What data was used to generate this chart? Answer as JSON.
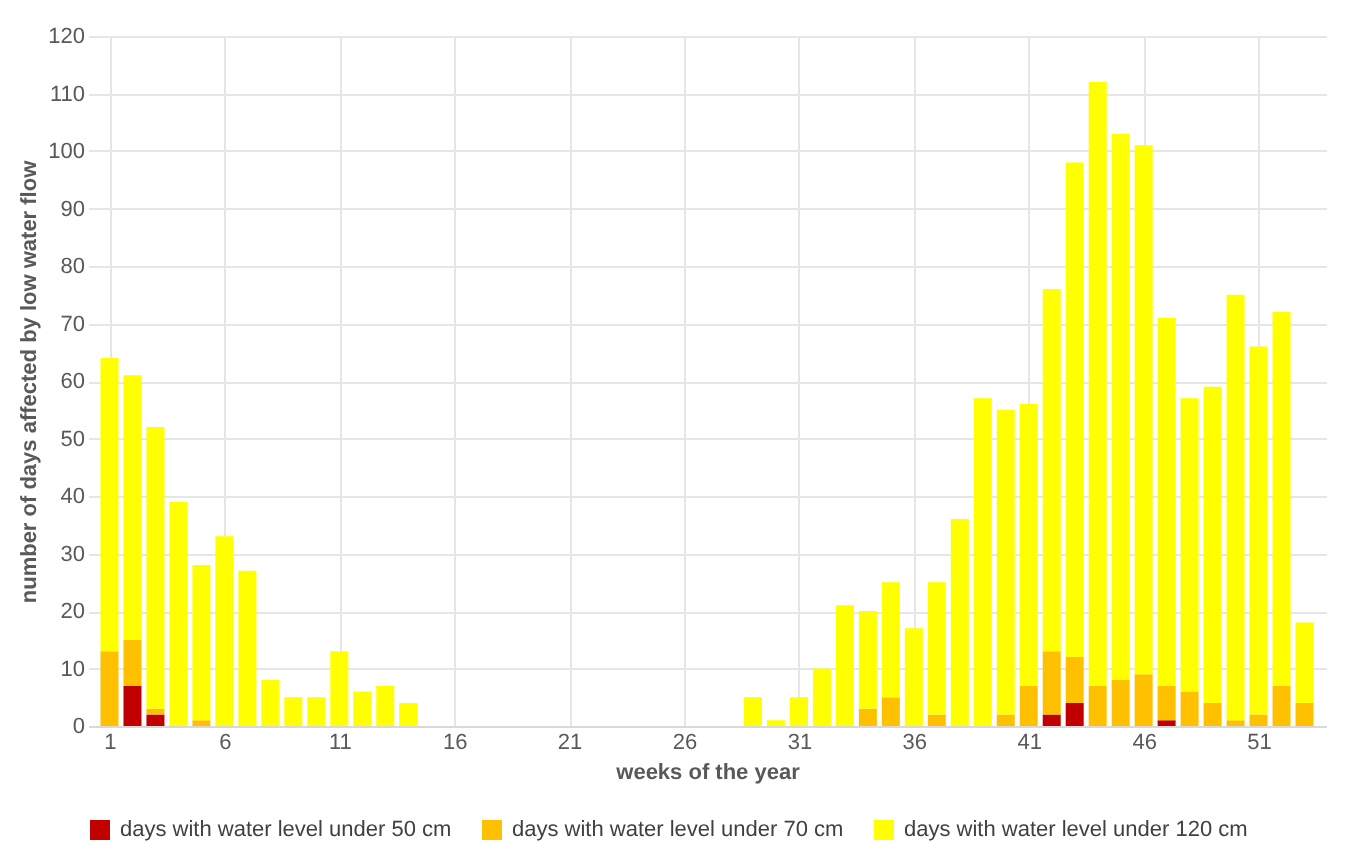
{
  "chart_data": {
    "type": "bar",
    "stacked": true,
    "xlabel": "weeks of the year",
    "ylabel": "number of days affected by low water flow",
    "x": [
      1,
      2,
      3,
      4,
      5,
      6,
      7,
      8,
      9,
      10,
      11,
      12,
      13,
      14,
      15,
      16,
      17,
      18,
      19,
      20,
      21,
      22,
      23,
      24,
      25,
      26,
      27,
      28,
      29,
      30,
      31,
      32,
      33,
      34,
      35,
      36,
      37,
      38,
      39,
      40,
      41,
      42,
      43,
      44,
      45,
      46,
      47,
      48,
      49,
      50,
      51,
      52,
      53
    ],
    "xlim": [
      0.5,
      53.5
    ],
    "xticks": [
      1,
      6,
      11,
      16,
      21,
      26,
      31,
      36,
      41,
      46,
      51
    ],
    "series": [
      {
        "name": "days with water level under 50 cm",
        "color": "#c00000",
        "values": [
          0,
          7,
          2,
          0,
          0,
          0,
          0,
          0,
          0,
          0,
          0,
          0,
          0,
          0,
          0,
          0,
          0,
          0,
          0,
          0,
          0,
          0,
          0,
          0,
          0,
          0,
          0,
          0,
          0,
          0,
          0,
          0,
          0,
          0,
          0,
          0,
          0,
          0,
          0,
          0,
          0,
          2,
          4,
          0,
          0,
          0,
          1,
          0,
          0,
          0,
          0,
          0,
          0
        ]
      },
      {
        "name": "days with water level under 70 cm",
        "color": "#ffc000",
        "values": [
          13,
          8,
          1,
          0,
          1,
          0,
          0,
          0,
          0,
          0,
          0,
          0,
          0,
          0,
          0,
          0,
          0,
          0,
          0,
          0,
          0,
          0,
          0,
          0,
          0,
          0,
          0,
          0,
          0,
          0,
          0,
          0,
          0,
          3,
          5,
          0,
          2,
          0,
          0,
          2,
          7,
          11,
          8,
          7,
          8,
          9,
          6,
          6,
          4,
          1,
          2,
          7,
          4
        ]
      },
      {
        "name": "days with water level under 120 cm",
        "color": "#ffff00",
        "values": [
          51,
          46,
          49,
          39,
          27,
          33,
          27,
          8,
          5,
          5,
          13,
          6,
          7,
          4,
          0,
          0,
          0,
          0,
          0,
          0,
          0,
          0,
          0,
          0,
          0,
          0,
          0,
          0,
          5,
          1,
          5,
          10,
          21,
          17,
          20,
          17,
          23,
          36,
          57,
          53,
          49,
          63,
          86,
          105,
          95,
          92,
          64,
          51,
          55,
          74,
          64,
          65,
          14
        ]
      }
    ],
    "ylim": [
      0,
      120
    ],
    "yticks": [
      0,
      10,
      20,
      30,
      40,
      50,
      60,
      70,
      80,
      90,
      100,
      110,
      120
    ],
    "grid": true,
    "legend": "bottom"
  }
}
